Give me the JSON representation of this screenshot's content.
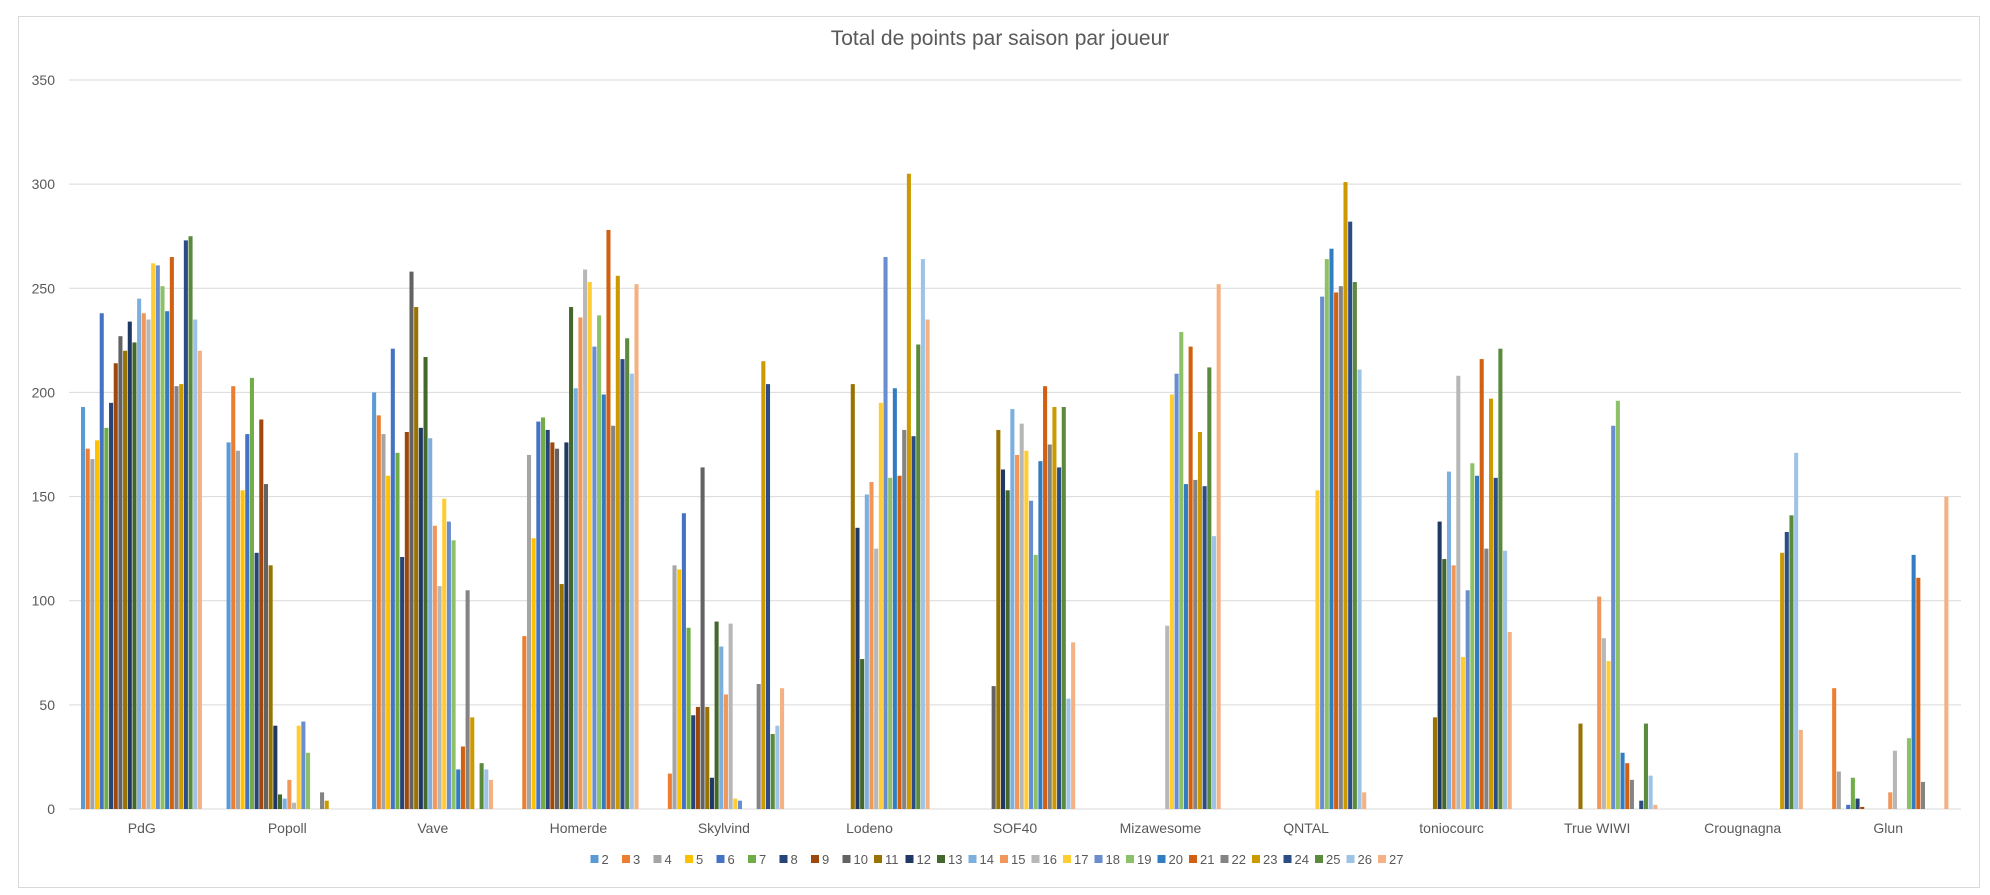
{
  "chart_data": {
    "type": "bar",
    "title": "Total de points par saison par joueur",
    "xlabel": "",
    "ylabel": "",
    "ylim": [
      0,
      350
    ],
    "yticks": [
      0,
      50,
      100,
      150,
      200,
      250,
      300,
      350
    ],
    "grid": true,
    "legend_position": "bottom",
    "categories": [
      "PdG",
      "Popoll",
      "Vave",
      "Homerde",
      "Skylvind",
      "Lodeno",
      "SOF40",
      "Mizawesome",
      "QNTAL",
      "toniocourc",
      "True WIWI",
      "Crougnagna",
      "Glun"
    ],
    "series": [
      {
        "name": "2",
        "color": "#5b9bd5",
        "values": [
          193,
          176,
          200,
          0,
          0,
          0,
          0,
          0,
          0,
          0,
          0,
          0,
          0
        ]
      },
      {
        "name": "3",
        "color": "#ed7d31",
        "values": [
          173,
          203,
          189,
          83,
          17,
          0,
          0,
          0,
          0,
          0,
          0,
          0,
          58
        ]
      },
      {
        "name": "4",
        "color": "#a5a5a5",
        "values": [
          168,
          172,
          180,
          170,
          117,
          0,
          0,
          0,
          0,
          0,
          0,
          0,
          18
        ]
      },
      {
        "name": "5",
        "color": "#ffc000",
        "values": [
          177,
          153,
          160,
          130,
          115,
          0,
          0,
          0,
          0,
          0,
          0,
          0,
          0
        ]
      },
      {
        "name": "6",
        "color": "#4472c4",
        "values": [
          238,
          180,
          221,
          186,
          142,
          0,
          0,
          0,
          0,
          0,
          0,
          0,
          2
        ]
      },
      {
        "name": "7",
        "color": "#70ad47",
        "values": [
          183,
          207,
          171,
          188,
          87,
          0,
          0,
          0,
          0,
          0,
          0,
          0,
          15
        ]
      },
      {
        "name": "8",
        "color": "#264478",
        "values": [
          195,
          123,
          121,
          182,
          45,
          0,
          0,
          0,
          0,
          0,
          0,
          0,
          5
        ]
      },
      {
        "name": "9",
        "color": "#9e480e",
        "values": [
          214,
          187,
          181,
          176,
          49,
          0,
          0,
          0,
          0,
          0,
          0,
          0,
          1
        ]
      },
      {
        "name": "10",
        "color": "#636363",
        "values": [
          227,
          156,
          258,
          173,
          164,
          0,
          59,
          0,
          0,
          0,
          0,
          0,
          0
        ]
      },
      {
        "name": "11",
        "color": "#997300",
        "values": [
          220,
          117,
          241,
          108,
          49,
          204,
          182,
          0,
          0,
          44,
          41,
          0,
          0
        ]
      },
      {
        "name": "12",
        "color": "#203864",
        "values": [
          234,
          40,
          183,
          176,
          15,
          135,
          163,
          0,
          0,
          138,
          0,
          0,
          0
        ]
      },
      {
        "name": "13",
        "color": "#43682b",
        "values": [
          224,
          7,
          217,
          241,
          90,
          72,
          153,
          0,
          0,
          120,
          0,
          0,
          0
        ]
      },
      {
        "name": "14",
        "color": "#7cafdd",
        "values": [
          245,
          5,
          178,
          202,
          78,
          151,
          192,
          0,
          0,
          162,
          0,
          0,
          0
        ]
      },
      {
        "name": "15",
        "color": "#f1975a",
        "values": [
          238,
          14,
          136,
          236,
          55,
          157,
          170,
          0,
          0,
          117,
          102,
          0,
          8
        ]
      },
      {
        "name": "16",
        "color": "#b7b7b7",
        "values": [
          235,
          3,
          107,
          259,
          89,
          125,
          185,
          88,
          0,
          208,
          82,
          0,
          28
        ]
      },
      {
        "name": "17",
        "color": "#ffcd33",
        "values": [
          262,
          40,
          149,
          253,
          5,
          195,
          172,
          199,
          153,
          73,
          71,
          0,
          0
        ]
      },
      {
        "name": "18",
        "color": "#698ed0",
        "values": [
          261,
          42,
          138,
          222,
          4,
          265,
          148,
          209,
          246,
          105,
          184,
          0,
          0
        ]
      },
      {
        "name": "19",
        "color": "#8cc168",
        "values": [
          251,
          27,
          129,
          237,
          0,
          159,
          122,
          229,
          264,
          166,
          196,
          0,
          34
        ]
      },
      {
        "name": "20",
        "color": "#327dc2",
        "values": [
          239,
          0,
          19,
          199,
          0,
          202,
          167,
          156,
          269,
          160,
          27,
          0,
          122
        ]
      },
      {
        "name": "21",
        "color": "#d26012",
        "values": [
          265,
          0,
          30,
          278,
          0,
          160,
          203,
          222,
          248,
          216,
          22,
          0,
          111
        ]
      },
      {
        "name": "22",
        "color": "#848484",
        "values": [
          203,
          8,
          105,
          184,
          60,
          182,
          175,
          158,
          251,
          125,
          14,
          0,
          13
        ]
      },
      {
        "name": "23",
        "color": "#cc9a00",
        "values": [
          204,
          4,
          44,
          256,
          215,
          305,
          193,
          181,
          301,
          197,
          0,
          123,
          0
        ]
      },
      {
        "name": "24",
        "color": "#2c4c85",
        "values": [
          273,
          0,
          0,
          216,
          204,
          179,
          164,
          155,
          282,
          159,
          4,
          133,
          0
        ]
      },
      {
        "name": "25",
        "color": "#5a8a3c",
        "values": [
          275,
          0,
          22,
          226,
          36,
          223,
          193,
          212,
          253,
          221,
          41,
          141,
          0
        ]
      },
      {
        "name": "26",
        "color": "#9dc3e6",
        "values": [
          235,
          0,
          19,
          209,
          40,
          264,
          53,
          131,
          211,
          124,
          16,
          171,
          0
        ]
      },
      {
        "name": "27",
        "color": "#f4b183",
        "values": [
          220,
          0,
          14,
          252,
          58,
          235,
          80,
          252,
          8,
          85,
          2,
          38,
          150
        ]
      }
    ]
  }
}
